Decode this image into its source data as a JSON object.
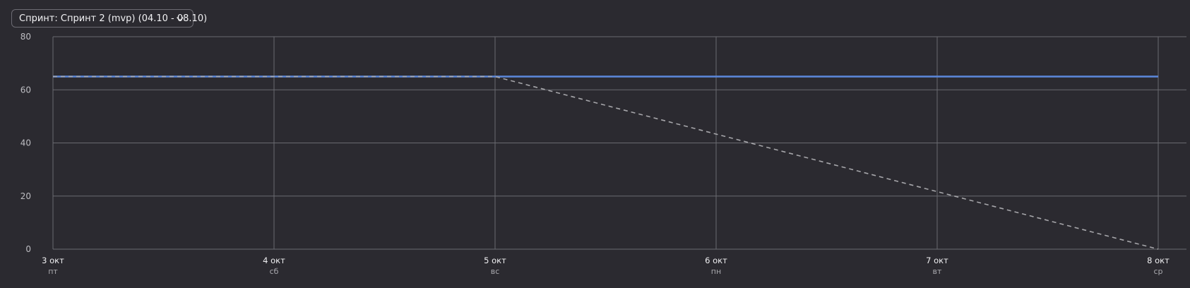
{
  "sprint_selector": {
    "label": "Спринт: Спринт 2 (mvp) (04.10 - 08.10)",
    "icon": "chevron-down-icon"
  },
  "colors": {
    "background": "#2b2a30",
    "grid": "#6a6a70",
    "actual_line": "#5b85d6",
    "ideal_line": "#a6a6aa"
  },
  "chart_data": {
    "type": "line",
    "grid": true,
    "ylim": [
      0,
      80
    ],
    "y_ticks": [
      "0",
      "20",
      "40",
      "60",
      "80"
    ],
    "categories": [
      {
        "date": "3 окт",
        "day": "пт"
      },
      {
        "date": "4 окт",
        "day": "сб"
      },
      {
        "date": "5 окт",
        "day": "вс"
      },
      {
        "date": "6 окт",
        "day": "пн"
      },
      {
        "date": "7 окт",
        "day": "вт"
      },
      {
        "date": "8 окт",
        "day": "ср"
      }
    ],
    "series": [
      {
        "style": "solid",
        "color": "#5b85d6",
        "points": [
          [
            0,
            65
          ],
          [
            5,
            65
          ]
        ]
      },
      {
        "style": "dashed",
        "color": "#a6a6aa",
        "points": [
          [
            0,
            65
          ],
          [
            2,
            65
          ],
          [
            5,
            0
          ]
        ]
      }
    ]
  }
}
